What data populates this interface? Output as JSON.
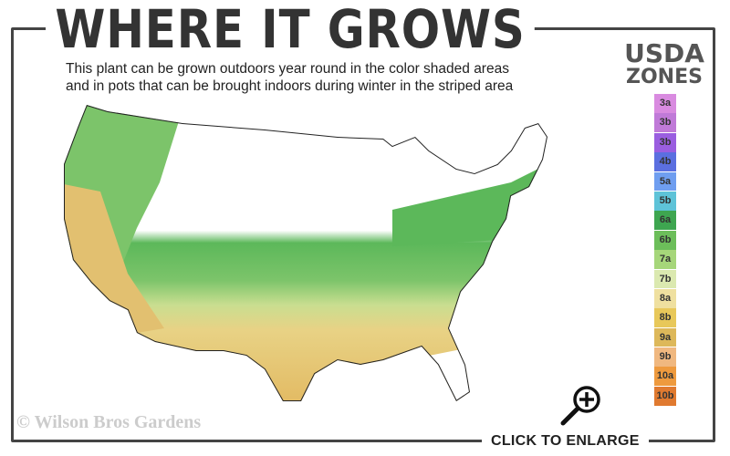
{
  "header": {
    "title": "WHERE IT GROWS",
    "subtitle_line1": "This plant can be grown outdoors year round in the color shaded areas",
    "subtitle_line2": "and in pots that can be brought indoors during winter in the striped area"
  },
  "legend": {
    "title_line1": "USDA",
    "title_line2": "ZONES",
    "zones": [
      {
        "label": "3a",
        "color": "#d98be0"
      },
      {
        "label": "3b",
        "color": "#c07ad8"
      },
      {
        "label": "3b",
        "color": "#9a5ee0"
      },
      {
        "label": "4b",
        "color": "#5b6fe0"
      },
      {
        "label": "5a",
        "color": "#6f9ef0"
      },
      {
        "label": "5b",
        "color": "#5ec3d8"
      },
      {
        "label": "6a",
        "color": "#3ea650"
      },
      {
        "label": "6b",
        "color": "#6cbe5a"
      },
      {
        "label": "7a",
        "color": "#a6d67a"
      },
      {
        "label": "7b",
        "color": "#dbe9b0"
      },
      {
        "label": "8a",
        "color": "#efe0a0"
      },
      {
        "label": "8b",
        "color": "#e8c85a"
      },
      {
        "label": "9a",
        "color": "#ddb85a"
      },
      {
        "label": "9b",
        "color": "#f0b880"
      },
      {
        "label": "10a",
        "color": "#ee9a3e"
      },
      {
        "label": "10b",
        "color": "#e07a30"
      }
    ]
  },
  "footer": {
    "copyright": "© Wilson Bros Gardens",
    "enlarge_label": "CLICK TO ENLARGE"
  },
  "icons": {
    "enlarge": "magnifier-plus-icon"
  }
}
